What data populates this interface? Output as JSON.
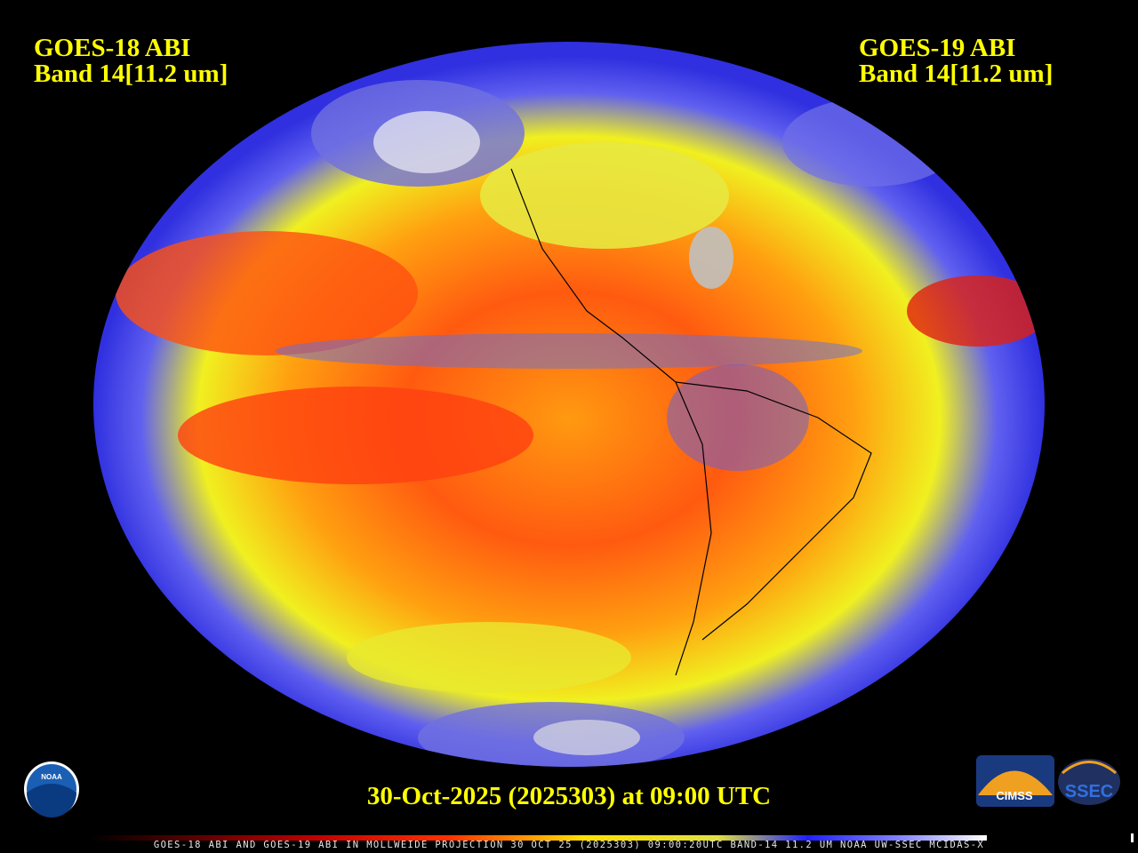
{
  "header": {
    "left": {
      "line1": "GOES-18 ABI",
      "line2": "Band 14[11.2 um]"
    },
    "right": {
      "line1": "GOES-19 ABI",
      "line2": "Band 14[11.2 um]"
    }
  },
  "caption": "30-Oct-2025 (2025303) at 09:00 UTC",
  "footer": {
    "strip": "GOES-18 ABI AND GOES-19 ABI IN MOLLWEIDE PROJECTION 30 OCT 25 (2025303) 09:00:20UTC BAND-14 11.2 UM NOAA UW-SSEC MCIDAS-X"
  },
  "logos": {
    "noaa": "NOAA",
    "cimss": "CIMSS",
    "ssec": "SSEC"
  }
}
